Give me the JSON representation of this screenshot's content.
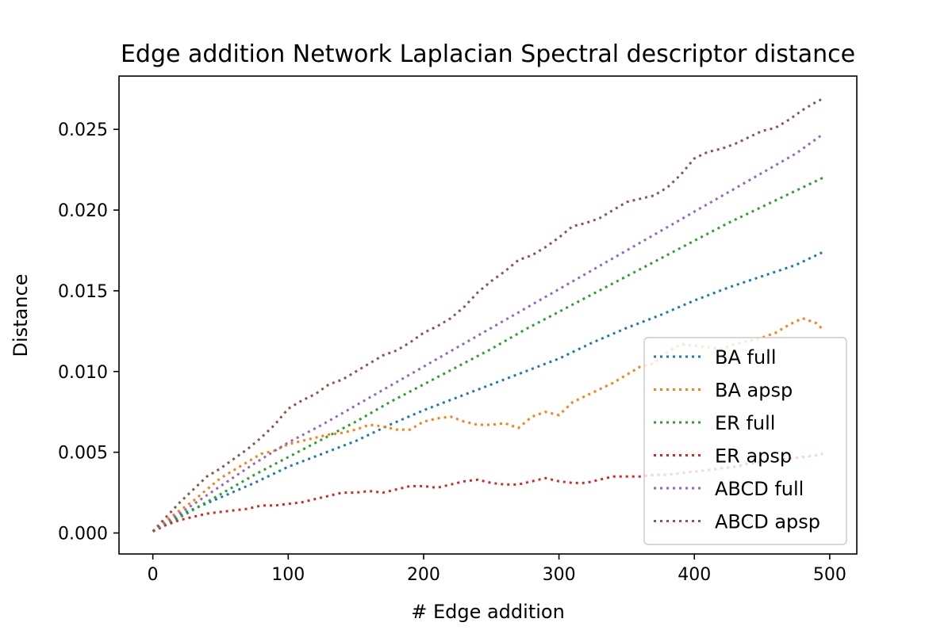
{
  "chart_data": {
    "type": "line",
    "title": "Edge addition Network Laplacian Spectral descriptor distance",
    "xlabel": "# Edge addition",
    "ylabel": "Distance",
    "xlim": [
      -25,
      520
    ],
    "ylim": [
      -0.0013,
      0.0283
    ],
    "xticks": [
      0,
      100,
      200,
      300,
      400,
      500
    ],
    "xtick_labels": [
      "0",
      "100",
      "200",
      "300",
      "400",
      "500"
    ],
    "yticks": [
      0,
      0.005,
      0.01,
      0.015,
      0.02,
      0.025
    ],
    "ytick_labels": [
      "0.000",
      "0.005",
      "0.010",
      "0.015",
      "0.020",
      "0.025"
    ],
    "grid": false,
    "legend_position": "lower-right",
    "line_style": "dotted",
    "series": [
      {
        "name": "BA full",
        "color": "#1f77b4",
        "x": [
          0,
          25,
          50,
          75,
          100,
          125,
          150,
          175,
          200,
          225,
          250,
          275,
          300,
          325,
          350,
          375,
          400,
          425,
          450,
          475,
          495
        ],
        "y": [
          0.0001,
          0.0013,
          0.0022,
          0.0031,
          0.0041,
          0.0049,
          0.0057,
          0.0067,
          0.0076,
          0.0084,
          0.0092,
          0.01,
          0.0108,
          0.0118,
          0.0127,
          0.0135,
          0.0144,
          0.0152,
          0.0159,
          0.0166,
          0.0174
        ]
      },
      {
        "name": "BA apsp",
        "color": "#ff7f0e",
        "x": [
          0,
          10,
          20,
          30,
          40,
          50,
          60,
          70,
          80,
          90,
          100,
          110,
          120,
          130,
          140,
          150,
          160,
          170,
          180,
          190,
          200,
          210,
          220,
          230,
          240,
          250,
          260,
          270,
          280,
          290,
          300,
          310,
          320,
          330,
          340,
          350,
          360,
          370,
          380,
          390,
          400,
          410,
          420,
          430,
          440,
          450,
          460,
          470,
          480,
          490,
          495
        ],
        "y": [
          0.0001,
          0.0008,
          0.0014,
          0.002,
          0.0027,
          0.0034,
          0.0039,
          0.0044,
          0.0049,
          0.0051,
          0.0055,
          0.0057,
          0.0059,
          0.0061,
          0.0062,
          0.0064,
          0.0067,
          0.0066,
          0.0064,
          0.0064,
          0.0069,
          0.0071,
          0.0072,
          0.0069,
          0.0067,
          0.0067,
          0.0068,
          0.0065,
          0.0072,
          0.0075,
          0.0073,
          0.0081,
          0.0085,
          0.0089,
          0.0093,
          0.0098,
          0.0103,
          0.0105,
          0.0112,
          0.0117,
          0.0116,
          0.0115,
          0.0114,
          0.0117,
          0.0119,
          0.0121,
          0.0124,
          0.0129,
          0.0133,
          0.013,
          0.0126
        ]
      },
      {
        "name": "ER full",
        "color": "#2ca02c",
        "x": [
          0,
          25,
          50,
          75,
          100,
          125,
          150,
          175,
          200,
          225,
          250,
          275,
          300,
          325,
          350,
          375,
          400,
          425,
          450,
          475,
          495
        ],
        "y": [
          0.0001,
          0.0012,
          0.0024,
          0.0036,
          0.0047,
          0.0058,
          0.0069,
          0.0081,
          0.0092,
          0.0103,
          0.0114,
          0.0126,
          0.0137,
          0.0148,
          0.0159,
          0.017,
          0.0181,
          0.0192,
          0.0202,
          0.0212,
          0.022
        ]
      },
      {
        "name": "ER apsp",
        "color": "#d62728",
        "x": [
          0,
          10,
          20,
          30,
          40,
          50,
          60,
          70,
          80,
          90,
          100,
          110,
          120,
          130,
          140,
          150,
          160,
          170,
          180,
          190,
          200,
          210,
          220,
          230,
          240,
          250,
          260,
          270,
          280,
          290,
          300,
          310,
          320,
          330,
          340,
          350,
          360,
          370,
          380,
          390,
          400,
          410,
          420,
          430,
          440,
          450,
          460,
          470,
          480,
          490,
          495
        ],
        "y": [
          0.0001,
          0.0005,
          0.0008,
          0.001,
          0.0012,
          0.0013,
          0.0014,
          0.0015,
          0.0017,
          0.0017,
          0.0018,
          0.0019,
          0.0021,
          0.0023,
          0.0025,
          0.0025,
          0.0026,
          0.0025,
          0.0027,
          0.0029,
          0.0029,
          0.0028,
          0.003,
          0.0032,
          0.0033,
          0.0031,
          0.003,
          0.003,
          0.0032,
          0.0034,
          0.0032,
          0.0031,
          0.0031,
          0.0033,
          0.0035,
          0.0035,
          0.0035,
          0.0036,
          0.0036,
          0.0037,
          0.0038,
          0.0039,
          0.004,
          0.0041,
          0.0043,
          0.0044,
          0.0045,
          0.0046,
          0.0047,
          0.0048,
          0.0049
        ]
      },
      {
        "name": "ABCD full",
        "color": "#9467bd",
        "x": [
          0,
          25,
          50,
          75,
          100,
          125,
          150,
          175,
          200,
          225,
          250,
          275,
          300,
          325,
          350,
          375,
          400,
          425,
          450,
          475,
          495
        ],
        "y": [
          0.0001,
          0.0015,
          0.0029,
          0.0043,
          0.0056,
          0.0067,
          0.0079,
          0.0091,
          0.0103,
          0.0115,
          0.0127,
          0.0139,
          0.0151,
          0.0163,
          0.0175,
          0.0187,
          0.0199,
          0.0211,
          0.0223,
          0.0235,
          0.0247
        ]
      },
      {
        "name": "ABCD apsp",
        "color": "#8c564b",
        "x": [
          0,
          10,
          20,
          30,
          40,
          50,
          60,
          70,
          80,
          90,
          100,
          110,
          120,
          130,
          140,
          150,
          160,
          170,
          180,
          190,
          200,
          210,
          220,
          230,
          240,
          250,
          260,
          270,
          280,
          290,
          300,
          310,
          320,
          330,
          340,
          350,
          360,
          370,
          380,
          390,
          400,
          410,
          420,
          430,
          440,
          450,
          460,
          470,
          480,
          490,
          495
        ],
        "y": [
          0.0001,
          0.001,
          0.0019,
          0.0027,
          0.0035,
          0.004,
          0.0046,
          0.0052,
          0.0059,
          0.0067,
          0.0077,
          0.0082,
          0.0086,
          0.0092,
          0.0095,
          0.01,
          0.0105,
          0.011,
          0.0113,
          0.0118,
          0.0124,
          0.0128,
          0.0133,
          0.014,
          0.0149,
          0.0156,
          0.0162,
          0.0169,
          0.0172,
          0.0177,
          0.0183,
          0.019,
          0.0192,
          0.0195,
          0.02,
          0.0205,
          0.0207,
          0.0209,
          0.0214,
          0.0222,
          0.0232,
          0.0236,
          0.0238,
          0.0241,
          0.0245,
          0.0249,
          0.0251,
          0.0256,
          0.0262,
          0.0267,
          0.0269
        ]
      }
    ]
  }
}
